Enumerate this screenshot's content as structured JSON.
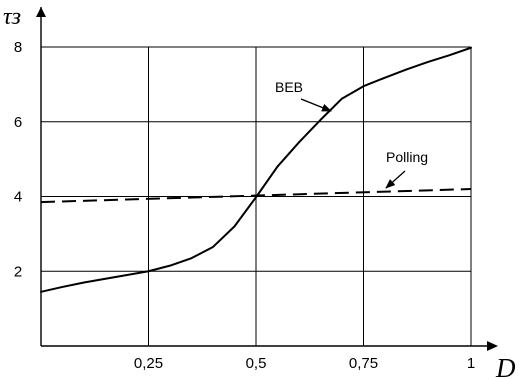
{
  "chart_data": {
    "type": "line",
    "title": "",
    "xlabel": "D",
    "ylabel": "τз",
    "xlim": [
      0,
      1
    ],
    "ylim": [
      0,
      8
    ],
    "grid": true,
    "x_ticks": [
      "0,25",
      "0,5",
      "0,75",
      "1"
    ],
    "y_ticks": [
      "2",
      "4",
      "6",
      "8"
    ],
    "series": [
      {
        "name": "BEB",
        "line_style": "solid",
        "color": "#000000",
        "x": [
          0,
          0.05,
          0.1,
          0.15,
          0.2,
          0.25,
          0.3,
          0.35,
          0.4,
          0.45,
          0.5,
          0.55,
          0.6,
          0.65,
          0.7,
          0.75,
          0.8,
          0.85,
          0.9,
          0.95,
          1.0
        ],
        "y": [
          1.45,
          1.58,
          1.7,
          1.8,
          1.9,
          2.0,
          2.15,
          2.35,
          2.65,
          3.2,
          3.98,
          4.8,
          5.45,
          6.05,
          6.62,
          6.95,
          7.18,
          7.4,
          7.6,
          7.78,
          7.98
        ]
      },
      {
        "name": "Polling",
        "line_style": "dashed",
        "color": "#000000",
        "x": [
          0,
          1
        ],
        "y": [
          3.85,
          4.2
        ]
      }
    ],
    "annotations": [
      {
        "text": "BEB",
        "arrow_to": {
          "x": 0.55,
          "y": 6.05
        }
      },
      {
        "text": "Polling",
        "arrow_to": {
          "x": 0.68,
          "y": 4.1
        }
      }
    ]
  }
}
